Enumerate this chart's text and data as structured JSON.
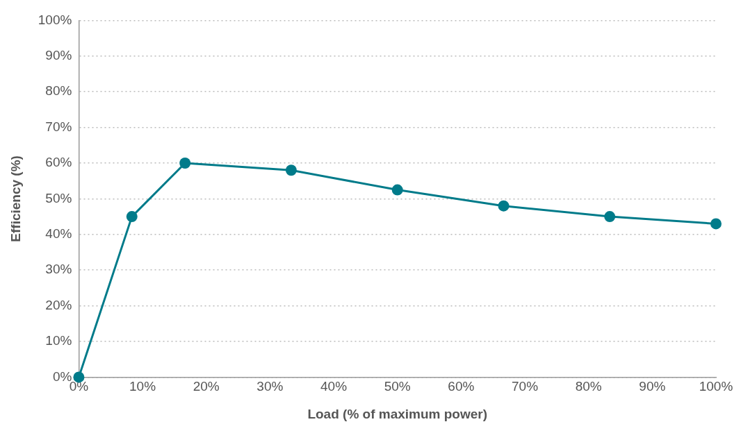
{
  "chart_data": {
    "type": "line",
    "xlabel": "Load (% of maximum power)",
    "ylabel": "Efficiency (%)",
    "x": [
      0,
      8.33,
      16.67,
      33.33,
      50,
      66.67,
      83.33,
      100
    ],
    "series": [
      {
        "color": "#007b8a",
        "values": [
          0,
          45,
          60,
          58,
          52.5,
          48,
          45,
          43
        ]
      }
    ],
    "xlim": [
      0,
      100
    ],
    "ylim": [
      0,
      100
    ],
    "xticks": [
      {
        "value": 0,
        "label": "0%"
      },
      {
        "value": 10,
        "label": "10%"
      },
      {
        "value": 20,
        "label": "20%"
      },
      {
        "value": 30,
        "label": "30%"
      },
      {
        "value": 40,
        "label": "40%"
      },
      {
        "value": 50,
        "label": "50%"
      },
      {
        "value": 60,
        "label": "60%"
      },
      {
        "value": 70,
        "label": "70%"
      },
      {
        "value": 80,
        "label": "80%"
      },
      {
        "value": 90,
        "label": "90%"
      },
      {
        "value": 100,
        "label": "100%"
      }
    ],
    "yticks": [
      {
        "value": 0,
        "label": "0%"
      },
      {
        "value": 10,
        "label": "10%"
      },
      {
        "value": 20,
        "label": "20%"
      },
      {
        "value": 30,
        "label": "30%"
      },
      {
        "value": 40,
        "label": "40%"
      },
      {
        "value": 50,
        "label": "50%"
      },
      {
        "value": 60,
        "label": "60%"
      },
      {
        "value": 70,
        "label": "70%"
      },
      {
        "value": 80,
        "label": "80%"
      },
      {
        "value": 90,
        "label": "90%"
      },
      {
        "value": 100,
        "label": "100%"
      }
    ],
    "grid": "y",
    "legend": false,
    "marker": "circle",
    "line_style": "solid"
  }
}
